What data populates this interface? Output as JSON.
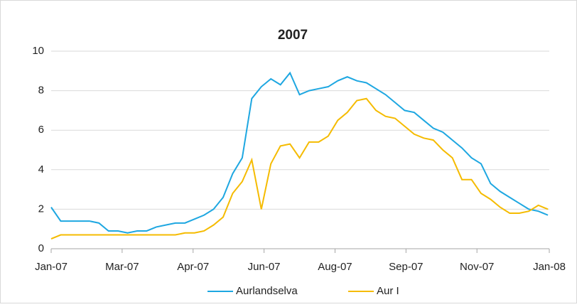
{
  "chart_data": {
    "type": "line",
    "title": "2007",
    "x": [
      0,
      7,
      14,
      21,
      28,
      35,
      42,
      49,
      56,
      63,
      70,
      77,
      84,
      91,
      98,
      105,
      112,
      119,
      126,
      133,
      140,
      147,
      154,
      161,
      168,
      175,
      182,
      189,
      196,
      203,
      210,
      217,
      224,
      231,
      238,
      245,
      252,
      259,
      266,
      273,
      280,
      287,
      294,
      301,
      308,
      315,
      322,
      329,
      336,
      343,
      350,
      357,
      364
    ],
    "series": [
      {
        "name": "Aurlandselva",
        "color": "#1ea7e1",
        "values": [
          2.1,
          1.4,
          1.4,
          1.4,
          1.4,
          1.3,
          0.9,
          0.9,
          0.8,
          0.9,
          0.9,
          1.1,
          1.2,
          1.3,
          1.3,
          1.5,
          1.7,
          2.0,
          2.6,
          3.8,
          4.6,
          7.6,
          8.2,
          8.6,
          8.3,
          8.9,
          7.8,
          8.0,
          8.1,
          8.2,
          8.5,
          8.7,
          8.5,
          8.4,
          8.1,
          7.8,
          7.4,
          7.0,
          6.9,
          6.5,
          6.1,
          5.9,
          5.5,
          5.1,
          4.6,
          4.3,
          3.3,
          2.9,
          2.6,
          2.3,
          2.0,
          1.9,
          1.7
        ]
      },
      {
        "name": "Aur I",
        "color": "#f5bb00",
        "values": [
          0.5,
          0.7,
          0.7,
          0.7,
          0.7,
          0.7,
          0.7,
          0.7,
          0.7,
          0.7,
          0.7,
          0.7,
          0.7,
          0.7,
          0.8,
          0.8,
          0.9,
          1.2,
          1.6,
          2.8,
          3.4,
          4.5,
          2.0,
          4.3,
          5.2,
          5.3,
          4.6,
          5.4,
          5.4,
          5.7,
          6.5,
          6.9,
          7.5,
          7.6,
          7.0,
          6.7,
          6.6,
          6.2,
          5.8,
          5.6,
          5.5,
          5.0,
          4.6,
          3.5,
          3.5,
          2.8,
          2.5,
          2.1,
          1.8,
          1.8,
          1.9,
          2.2,
          2.0
        ]
      }
    ],
    "xlim": [
      0,
      365
    ],
    "xticks": [
      {
        "value": 0,
        "label": "Jan-07"
      },
      {
        "value": 52,
        "label": "Mar-07"
      },
      {
        "value": 104,
        "label": "Apr-07"
      },
      {
        "value": 156,
        "label": "Jun-07"
      },
      {
        "value": 208,
        "label": "Aug-07"
      },
      {
        "value": 260,
        "label": "Sep-07"
      },
      {
        "value": 312,
        "label": "Nov-07"
      },
      {
        "value": 365,
        "label": "Jan-08"
      }
    ],
    "ylim": [
      0,
      10
    ],
    "yticks": [
      0,
      2,
      4,
      6,
      8,
      10
    ],
    "grid": true,
    "legend": "bottom"
  }
}
